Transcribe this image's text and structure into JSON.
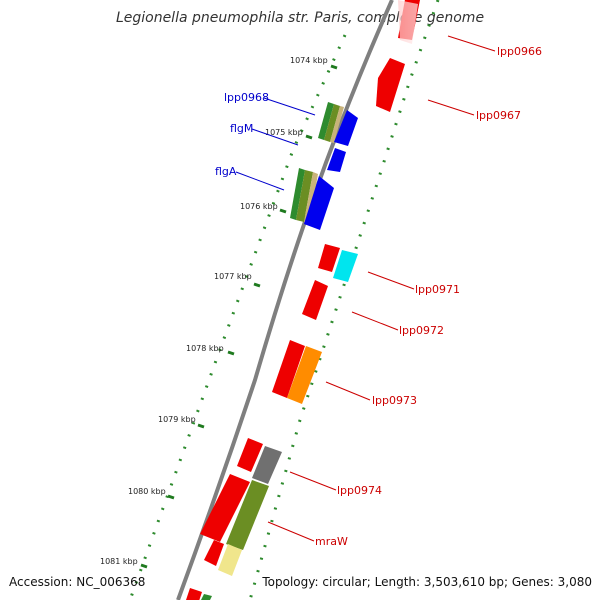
{
  "title": "Legionella pneumophila str. Paris, complete genome",
  "footer": {
    "accession": "Accession: NC_006368",
    "summary": "Topology: circular; Length: 3,503,610 bp; Genes: 3,080"
  },
  "colors": {
    "backbone": "#7f7f7f",
    "tick": "#1f7a1f",
    "forward_label": "#0000cc",
    "reverse_label": "#cc0000",
    "red": "#ee0000",
    "blue": "#0000ee",
    "cyan": "#00eeee",
    "orange": "#ff8c00",
    "olive": "#6b8e23",
    "gray": "#707070",
    "tan": "#c8b37a",
    "green": "#2e8b2e",
    "yellow": "#f0e68c"
  },
  "ticks": [
    "1074 kbp",
    "1075 kbp",
    "1076 kbp",
    "1077 kbp",
    "1078 kbp",
    "1079 kbp",
    "1080 kbp",
    "1081 kbp"
  ],
  "gene_labels": {
    "lpp0966": "lpp0966",
    "lpp0967": "lpp0967",
    "lpp0968": "lpp0968",
    "flgM": "flgM",
    "flgA": "flgA",
    "lpp0971": "lpp0971",
    "lpp0972": "lpp0972",
    "lpp0973": "lpp0973",
    "lpp0974": "lpp0974",
    "mraW": "mraW"
  }
}
